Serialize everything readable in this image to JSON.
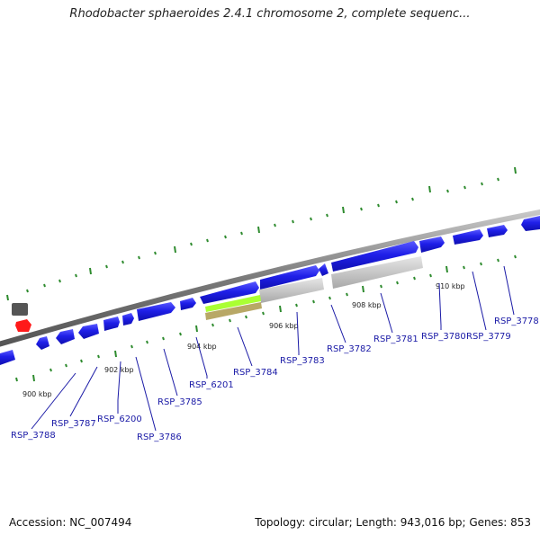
{
  "title": "Rhodobacter sphaeroides 2.4.1 chromosome 2, complete sequenc...",
  "footer": {
    "accession": "Accession: NC_007494",
    "summary": "Topology: circular; Length: 943,016 bp; Genes: 853"
  },
  "colors": {
    "gene_forward": "#1f1fe8",
    "gene_highlight_yellow": "#aaff33",
    "gene_highlight_olive": "#b8a866",
    "gene_gray": "#c4c4c4",
    "tick": "#2e8b2e",
    "label": "#1a1aa6"
  },
  "ruler_labels": [
    "900 kbp",
    "902 kbp",
    "904 kbp",
    "906 kbp",
    "908 kbp",
    "910 kbp"
  ],
  "gene_labels": [
    "RSP_3788",
    "RSP_3787",
    "RSP_6200",
    "RSP_3786",
    "RSP_3785",
    "RSP_6201",
    "RSP_3784",
    "RSP_3783",
    "RSP_3782",
    "RSP_3781",
    "RSP_3780",
    "RSP_3779",
    "RSP_3778"
  ]
}
